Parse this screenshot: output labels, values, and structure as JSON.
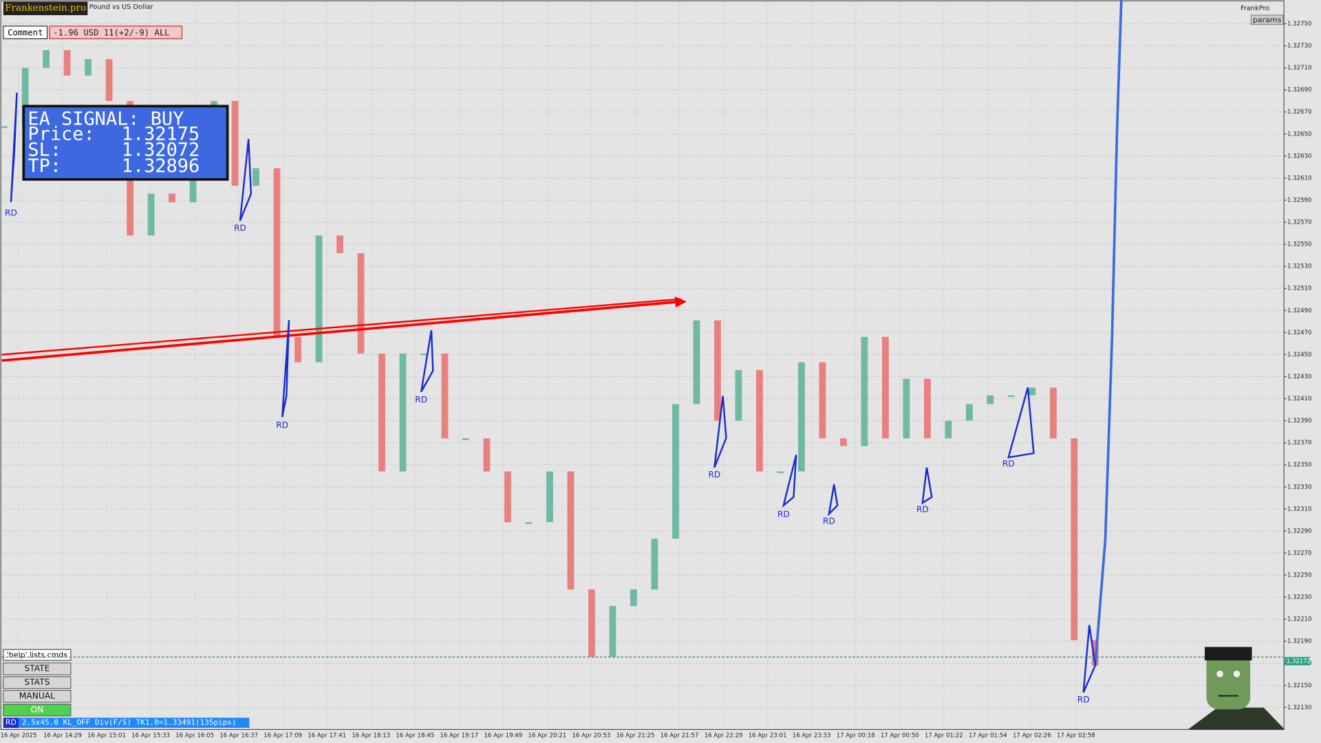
{
  "header": {
    "brand": "Frankenstein.pro",
    "symbol": "Pound vs US Dollar",
    "right_label": "FrankPro",
    "params": "params"
  },
  "comment": {
    "label": "Comment",
    "value": "-1.96 USD 11(+2/-9) ALL"
  },
  "signal": {
    "title": "EA SIGNAL: BUY",
    "rows": [
      [
        "Price:",
        "1.32175"
      ],
      [
        "SL:",
        "1.32072"
      ],
      [
        "TP:",
        "1.32896"
      ]
    ]
  },
  "panel": {
    "help": "'help' lists cmds",
    "buttons": [
      "STATE",
      "STATS",
      "MANUAL",
      "ON"
    ]
  },
  "status": {
    "tag": "RD",
    "text": "2.5x45.0 KL_OFF Div(F/S) TK1.0=1.33491(135pips)"
  },
  "markers": [
    "RD",
    "RD",
    "RD",
    "RD",
    "RD",
    "RD",
    "RD",
    "RD",
    "RD",
    "RD"
  ],
  "price_chart": {
    "ylim": [
      1.3211,
      1.3277
    ],
    "yticks": [
      {
        "value": 1.3275,
        "label": "1.32750"
      },
      {
        "value": 1.3273,
        "label": "1.32730"
      },
      {
        "value": 1.3271,
        "label": "1.32710"
      },
      {
        "value": 1.3269,
        "label": "1.32690"
      },
      {
        "value": 1.3267,
        "label": "1.32670"
      },
      {
        "value": 1.3265,
        "label": "1.32650"
      },
      {
        "value": 1.3263,
        "label": "1.32630"
      },
      {
        "value": 1.3261,
        "label": "1.32610"
      },
      {
        "value": 1.3259,
        "label": "1.32590"
      },
      {
        "value": 1.3257,
        "label": "1.32570"
      },
      {
        "value": 1.3255,
        "label": "1.32550"
      },
      {
        "value": 1.3253,
        "label": "1.32530"
      },
      {
        "value": 1.3251,
        "label": "1.32510"
      },
      {
        "value": 1.3249,
        "label": "1.32490"
      },
      {
        "value": 1.3247,
        "label": "1.32470"
      },
      {
        "value": 1.3245,
        "label": "1.32450"
      },
      {
        "value": 1.3243,
        "label": "1.32430"
      },
      {
        "value": 1.3241,
        "label": "1.32410"
      },
      {
        "value": 1.3239,
        "label": "1.32390"
      },
      {
        "value": 1.3237,
        "label": "1.32370"
      },
      {
        "value": 1.3235,
        "label": "1.32350"
      },
      {
        "value": 1.3233,
        "label": "1.32330"
      },
      {
        "value": 1.3231,
        "label": "1.32310"
      },
      {
        "value": 1.3229,
        "label": "1.32290"
      },
      {
        "value": 1.3227,
        "label": "1.32270"
      },
      {
        "value": 1.3225,
        "label": "1.32250"
      },
      {
        "value": 1.3223,
        "label": "1.32230"
      },
      {
        "value": 1.3221,
        "label": "1.32210"
      },
      {
        "value": 1.3219,
        "label": "1.32190"
      },
      {
        "value": 1.3217,
        "label": "1.32170"
      },
      {
        "value": 1.3215,
        "label": "1.32150"
      },
      {
        "value": 1.3213,
        "label": "1.32130"
      }
    ],
    "categories": [
      "16 Apr 2025",
      "16 Apr 14:29",
      "16 Apr 15:01",
      "16 Apr 15:33",
      "16 Apr 16:05",
      "16 Apr 16:37",
      "16 Apr 17:09",
      "16 Apr 17:41",
      "16 Apr 18:13",
      "16 Apr 18:45",
      "16 Apr 19:17",
      "16 Apr 19:49",
      "16 Apr 20:21",
      "16 Apr 20:53",
      "16 Apr 21:25",
      "16 Apr 21:57",
      "16 Apr 22:29",
      "16 Apr 23:01",
      "16 Apr 23:33",
      "17 Apr 00:18",
      "17 Apr 00:50",
      "17 Apr 01:22",
      "17 Apr 01:54",
      "17 Apr 02:26",
      "17 Apr 02:58"
    ],
    "closes": [
      1.32657,
      1.3271,
      1.32726,
      1.32703,
      1.32718,
      1.3268,
      1.32558,
      1.32596,
      1.32588,
      1.32642,
      1.3268,
      1.32603,
      1.32619,
      1.32466,
      1.32443,
      1.32558,
      1.32542,
      1.32451,
      1.32344,
      1.32451,
      1.32451,
      1.32374,
      1.32374,
      1.32344,
      1.32298,
      1.32298,
      1.32344,
      1.32237,
      1.32176,
      1.32222,
      1.32237,
      1.32283,
      1.32405,
      1.32481,
      1.3239,
      1.32436,
      1.32344,
      1.32344,
      1.32443,
      1.32374,
      1.32367,
      1.32466,
      1.32374,
      1.32428,
      1.32374,
      1.3239,
      1.32405,
      1.32413,
      1.32413,
      1.3242,
      1.32374,
      1.32191,
      1.32168
    ],
    "up_color": "#6fb8a6",
    "down_color": "#e88080",
    "current_price": {
      "value": 1.32172,
      "label": "1.32172"
    }
  }
}
